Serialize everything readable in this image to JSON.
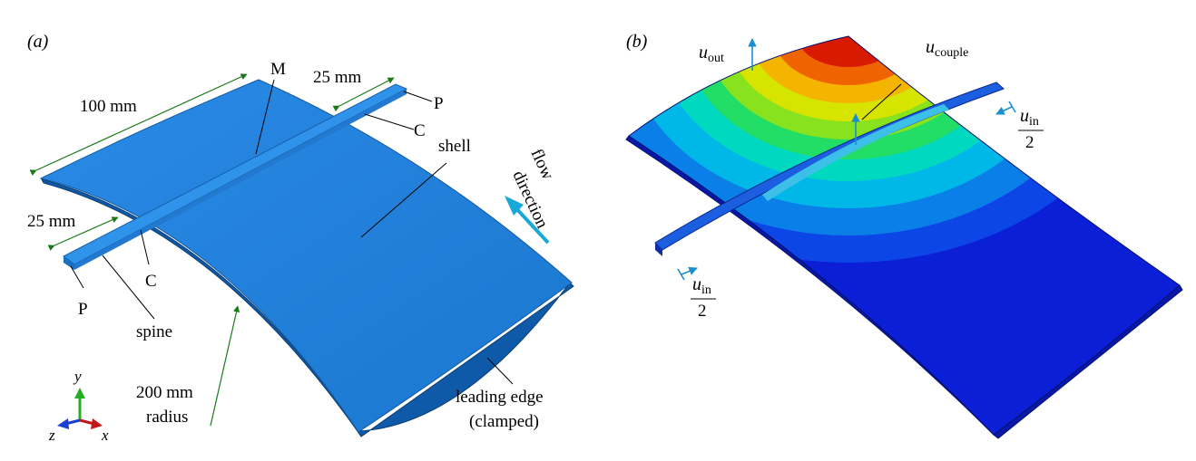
{
  "panel_a": {
    "tag": "(a)",
    "dim_100": "100 mm",
    "dim_25_top": "25 mm",
    "dim_25_left": "25 mm",
    "label_M": "M",
    "label_P_top": "P",
    "label_C_top": "C",
    "label_shell": "shell",
    "flow_line1": "flow",
    "flow_line2": "direction",
    "label_C_bottom": "C",
    "label_P_bottom": "P",
    "label_spine": "spine",
    "radius_line1": "200 mm",
    "radius_line2": "radius",
    "edge_line1": "leading edge",
    "edge_line2": "(clamped)",
    "axes": {
      "y": "y",
      "z": "z",
      "x": "x"
    }
  },
  "panel_b": {
    "tag": "(b)",
    "u_out_main": "u",
    "u_out_sub": "out",
    "u_couple_main": "u",
    "u_couple_sub": "couple",
    "u_in_main": "u",
    "u_in_sub": "in",
    "u_in_den": "2"
  },
  "colors": {
    "shell_blue": "#1e7fd8",
    "shell_blue_dark": "#176ec2",
    "dimension_green": "#1a7a1a",
    "flow_arrow": "#19a9d8",
    "contour": [
      "#0a1fd6",
      "#0d46e6",
      "#0b7fe8",
      "#00b8e8",
      "#00d9c0",
      "#22dd66",
      "#88e21e",
      "#d6e400",
      "#f5b400",
      "#ef6400",
      "#d81a00"
    ]
  }
}
